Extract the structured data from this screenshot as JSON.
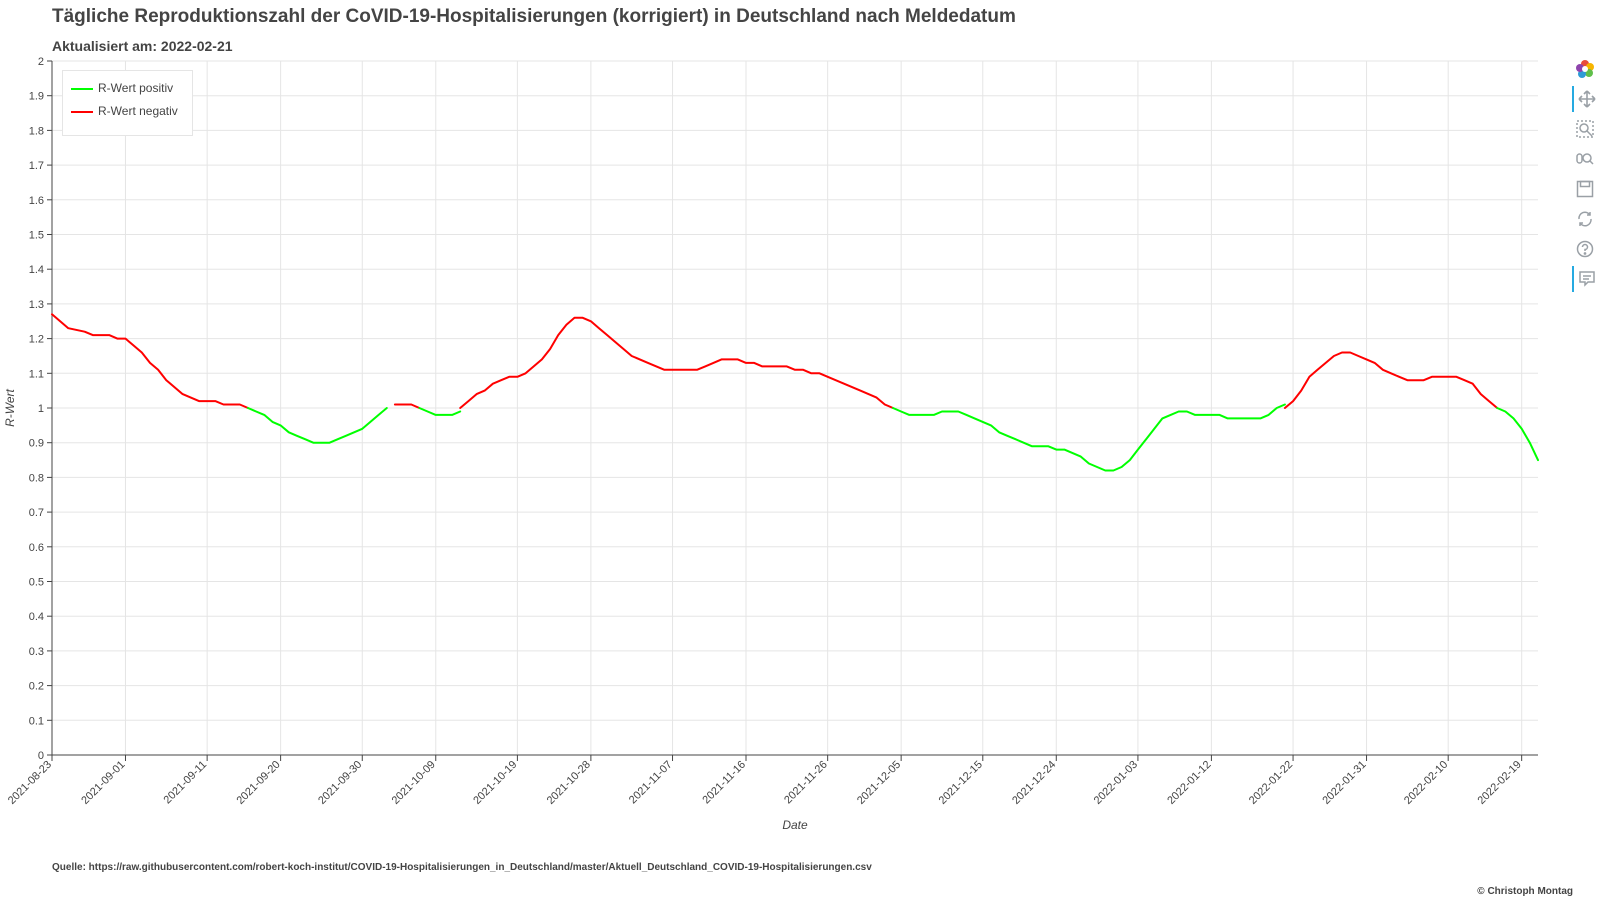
{
  "title": "Tägliche Reproduktionszahl der CoVID-19-Hospitalisierungen (korrigiert) in Deutschland nach Meldedatum",
  "subtitle": "Aktualisiert am: 2022-02-21",
  "source": "Quelle: https://raw.githubusercontent.com/robert-koch-institut/COVID-19-Hospitalisierungen_in_Deutschland/master/Aktuell_Deutschland_COVID-19-Hospitalisierungen.csv",
  "copyright": "© Christoph Montag",
  "colors": {
    "positive": "#00ff00",
    "negative": "#ff0000",
    "grid": "#e5e5e5",
    "axis": "#444444"
  },
  "toolbar": {
    "icons": [
      "bokeh-logo-icon",
      "pan-icon",
      "box-zoom-icon",
      "wheel-zoom-icon",
      "save-icon",
      "reset-icon",
      "help-icon",
      "hover-icon"
    ]
  },
  "chart_data": {
    "type": "line",
    "xlabel": "Date",
    "ylabel": "R-Wert",
    "ylim": [
      0,
      2
    ],
    "xlim": [
      "2021-08-23",
      "2022-02-21"
    ],
    "yticks": [
      "0",
      "0.1",
      "0.2",
      "0.3",
      "0.4",
      "0.5",
      "0.6",
      "0.7",
      "0.8",
      "0.9",
      "1",
      "1.1",
      "1.2",
      "1.3",
      "1.4",
      "1.5",
      "1.6",
      "1.7",
      "1.8",
      "1.9",
      "2"
    ],
    "xticks": [
      "2021-08-23",
      "2021-09-01",
      "2021-09-11",
      "2021-09-20",
      "2021-09-30",
      "2021-10-09",
      "2021-10-19",
      "2021-10-28",
      "2021-11-07",
      "2021-11-16",
      "2021-11-26",
      "2021-12-05",
      "2021-12-15",
      "2021-12-24",
      "2022-01-03",
      "2022-01-12",
      "2022-01-22",
      "2022-01-31",
      "2022-02-10",
      "2022-02-19"
    ],
    "grid": true,
    "legend_position": "top-left",
    "legend": [
      "R-Wert positiv",
      "R-Wert negativ"
    ],
    "series": [
      {
        "name": "R-Wert negativ",
        "color": "#ff0000",
        "segments": [
          [
            [
              "2021-08-23",
              1.27
            ],
            [
              "2021-08-25",
              1.23
            ],
            [
              "2021-08-27",
              1.22
            ],
            [
              "2021-08-28",
              1.21
            ],
            [
              "2021-08-29",
              1.21
            ],
            [
              "2021-08-30",
              1.21
            ],
            [
              "2021-08-31",
              1.2
            ],
            [
              "2021-09-01",
              1.2
            ],
            [
              "2021-09-02",
              1.18
            ],
            [
              "2021-09-03",
              1.16
            ],
            [
              "2021-09-04",
              1.13
            ],
            [
              "2021-09-05",
              1.11
            ],
            [
              "2021-09-06",
              1.08
            ],
            [
              "2021-09-08",
              1.04
            ],
            [
              "2021-09-10",
              1.02
            ],
            [
              "2021-09-11",
              1.02
            ],
            [
              "2021-09-12",
              1.02
            ],
            [
              "2021-09-13",
              1.01
            ],
            [
              "2021-09-14",
              1.01
            ],
            [
              "2021-09-15",
              1.01
            ],
            [
              "2021-09-16",
              1.0
            ]
          ],
          [
            [
              "2021-10-04",
              1.01
            ],
            [
              "2021-10-05",
              1.01
            ],
            [
              "2021-10-06",
              1.01
            ],
            [
              "2021-10-07",
              1.0
            ]
          ],
          [
            [
              "2021-10-12",
              1.0
            ],
            [
              "2021-10-13",
              1.02
            ],
            [
              "2021-10-14",
              1.04
            ],
            [
              "2021-10-15",
              1.05
            ],
            [
              "2021-10-16",
              1.07
            ],
            [
              "2021-10-17",
              1.08
            ],
            [
              "2021-10-18",
              1.09
            ],
            [
              "2021-10-19",
              1.09
            ],
            [
              "2021-10-20",
              1.1
            ],
            [
              "2021-10-21",
              1.12
            ],
            [
              "2021-10-22",
              1.14
            ],
            [
              "2021-10-23",
              1.17
            ],
            [
              "2021-10-24",
              1.21
            ],
            [
              "2021-10-25",
              1.24
            ],
            [
              "2021-10-26",
              1.26
            ],
            [
              "2021-10-27",
              1.26
            ],
            [
              "2021-10-28",
              1.25
            ],
            [
              "2021-10-29",
              1.23
            ],
            [
              "2021-10-30",
              1.21
            ],
            [
              "2021-10-31",
              1.19
            ],
            [
              "2021-11-01",
              1.17
            ],
            [
              "2021-11-02",
              1.15
            ],
            [
              "2021-11-04",
              1.13
            ],
            [
              "2021-11-06",
              1.11
            ],
            [
              "2021-11-07",
              1.11
            ],
            [
              "2021-11-08",
              1.11
            ],
            [
              "2021-11-09",
              1.11
            ],
            [
              "2021-11-10",
              1.11
            ],
            [
              "2021-11-11",
              1.12
            ],
            [
              "2021-11-12",
              1.13
            ],
            [
              "2021-11-13",
              1.14
            ],
            [
              "2021-11-14",
              1.14
            ],
            [
              "2021-11-15",
              1.14
            ],
            [
              "2021-11-16",
              1.13
            ],
            [
              "2021-11-17",
              1.13
            ],
            [
              "2021-11-18",
              1.12
            ],
            [
              "2021-11-19",
              1.12
            ],
            [
              "2021-11-20",
              1.12
            ],
            [
              "2021-11-21",
              1.12
            ],
            [
              "2021-11-22",
              1.11
            ],
            [
              "2021-11-23",
              1.11
            ],
            [
              "2021-11-24",
              1.1
            ],
            [
              "2021-11-25",
              1.1
            ],
            [
              "2021-11-26",
              1.09
            ],
            [
              "2021-11-28",
              1.07
            ],
            [
              "2021-11-30",
              1.05
            ],
            [
              "2021-12-02",
              1.03
            ],
            [
              "2021-12-03",
              1.01
            ],
            [
              "2021-12-04",
              1.0
            ]
          ],
          [
            [
              "2022-01-21",
              1.0
            ],
            [
              "2022-01-22",
              1.02
            ],
            [
              "2022-01-23",
              1.05
            ],
            [
              "2022-01-24",
              1.09
            ],
            [
              "2022-01-25",
              1.11
            ],
            [
              "2022-01-26",
              1.13
            ],
            [
              "2022-01-27",
              1.15
            ],
            [
              "2022-01-28",
              1.16
            ],
            [
              "2022-01-29",
              1.16
            ],
            [
              "2022-01-30",
              1.15
            ],
            [
              "2022-01-31",
              1.14
            ],
            [
              "2022-02-01",
              1.13
            ],
            [
              "2022-02-02",
              1.11
            ],
            [
              "2022-02-03",
              1.1
            ],
            [
              "2022-02-04",
              1.09
            ],
            [
              "2022-02-05",
              1.08
            ],
            [
              "2022-02-06",
              1.08
            ],
            [
              "2022-02-07",
              1.08
            ],
            [
              "2022-02-08",
              1.09
            ],
            [
              "2022-02-09",
              1.09
            ],
            [
              "2022-02-10",
              1.09
            ],
            [
              "2022-02-11",
              1.09
            ],
            [
              "2022-02-12",
              1.08
            ],
            [
              "2022-02-13",
              1.07
            ],
            [
              "2022-02-14",
              1.04
            ],
            [
              "2022-02-15",
              1.02
            ],
            [
              "2022-02-16",
              1.0
            ]
          ]
        ]
      },
      {
        "name": "R-Wert positiv",
        "color": "#00ff00",
        "segments": [
          [
            [
              "2021-09-16",
              1.0
            ],
            [
              "2021-09-17",
              0.99
            ],
            [
              "2021-09-18",
              0.98
            ],
            [
              "2021-09-19",
              0.96
            ],
            [
              "2021-09-20",
              0.95
            ],
            [
              "2021-09-21",
              0.93
            ],
            [
              "2021-09-22",
              0.92
            ],
            [
              "2021-09-23",
              0.91
            ],
            [
              "2021-09-24",
              0.9
            ],
            [
              "2021-09-25",
              0.9
            ],
            [
              "2021-09-26",
              0.9
            ],
            [
              "2021-09-27",
              0.91
            ],
            [
              "2021-09-28",
              0.92
            ],
            [
              "2021-09-29",
              0.93
            ],
            [
              "2021-09-30",
              0.94
            ],
            [
              "2021-10-01",
              0.96
            ],
            [
              "2021-10-02",
              0.98
            ],
            [
              "2021-10-03",
              1.0
            ]
          ],
          [
            [
              "2021-10-07",
              1.0
            ],
            [
              "2021-10-08",
              0.99
            ],
            [
              "2021-10-09",
              0.98
            ],
            [
              "2021-10-10",
              0.98
            ],
            [
              "2021-10-11",
              0.98
            ],
            [
              "2021-10-12",
              0.99
            ]
          ],
          [
            [
              "2021-12-04",
              1.0
            ],
            [
              "2021-12-05",
              0.99
            ],
            [
              "2021-12-06",
              0.98
            ],
            [
              "2021-12-07",
              0.98
            ],
            [
              "2021-12-08",
              0.98
            ],
            [
              "2021-12-09",
              0.98
            ],
            [
              "2021-12-10",
              0.99
            ],
            [
              "2021-12-11",
              0.99
            ],
            [
              "2021-12-12",
              0.99
            ],
            [
              "2021-12-13",
              0.98
            ],
            [
              "2021-12-14",
              0.97
            ],
            [
              "2021-12-15",
              0.96
            ],
            [
              "2021-12-16",
              0.95
            ],
            [
              "2021-12-17",
              0.93
            ],
            [
              "2021-12-18",
              0.92
            ],
            [
              "2021-12-19",
              0.91
            ],
            [
              "2021-12-20",
              0.9
            ],
            [
              "2021-12-21",
              0.89
            ],
            [
              "2021-12-22",
              0.89
            ],
            [
              "2021-12-23",
              0.89
            ],
            [
              "2021-12-24",
              0.88
            ],
            [
              "2021-12-25",
              0.88
            ],
            [
              "2021-12-26",
              0.87
            ],
            [
              "2021-12-27",
              0.86
            ],
            [
              "2021-12-28",
              0.84
            ],
            [
              "2021-12-29",
              0.83
            ],
            [
              "2021-12-30",
              0.82
            ],
            [
              "2021-12-31",
              0.82
            ],
            [
              "2022-01-01",
              0.83
            ],
            [
              "2022-01-02",
              0.85
            ],
            [
              "2022-01-03",
              0.88
            ],
            [
              "2022-01-04",
              0.91
            ],
            [
              "2022-01-05",
              0.94
            ],
            [
              "2022-01-06",
              0.97
            ],
            [
              "2022-01-07",
              0.98
            ],
            [
              "2022-01-08",
              0.99
            ],
            [
              "2022-01-09",
              0.99
            ],
            [
              "2022-01-10",
              0.98
            ],
            [
              "2022-01-11",
              0.98
            ],
            [
              "2022-01-12",
              0.98
            ],
            [
              "2022-01-13",
              0.98
            ],
            [
              "2022-01-14",
              0.97
            ],
            [
              "2022-01-15",
              0.97
            ],
            [
              "2022-01-16",
              0.97
            ],
            [
              "2022-01-17",
              0.97
            ],
            [
              "2022-01-18",
              0.97
            ],
            [
              "2022-01-19",
              0.98
            ],
            [
              "2022-01-20",
              1.0
            ],
            [
              "2022-01-21",
              1.01
            ]
          ],
          [
            [
              "2022-02-16",
              1.0
            ],
            [
              "2022-02-17",
              0.99
            ],
            [
              "2022-02-18",
              0.97
            ],
            [
              "2022-02-19",
              0.94
            ],
            [
              "2022-02-20",
              0.9
            ],
            [
              "2022-02-21",
              0.85
            ]
          ]
        ]
      }
    ]
  }
}
